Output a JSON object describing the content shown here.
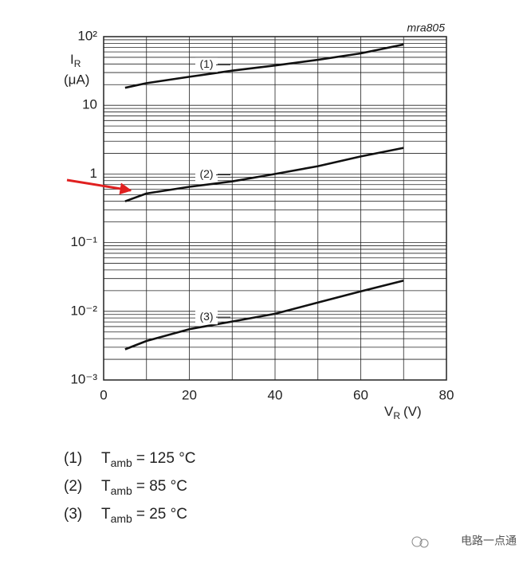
{
  "chart_data": {
    "type": "line",
    "annotation": "mra805",
    "ylabel": {
      "symbol": "I",
      "subscript": "R",
      "unit": "(μA)"
    },
    "xlabel": {
      "symbol": "V",
      "subscript": "R",
      "unit": "(V)"
    },
    "log_y": true,
    "grid": true,
    "xlim": [
      0,
      80
    ],
    "ylim": [
      0.001,
      100
    ],
    "xticks": [
      0,
      20,
      40,
      60,
      80
    ],
    "xminorticks": [
      10,
      30,
      50,
      70
    ],
    "yticks": [
      {
        "value": 100,
        "label": "10²"
      },
      10,
      1,
      {
        "value": 0.1,
        "label": "10⁻¹"
      },
      {
        "value": 0.01,
        "label": "10⁻²"
      },
      {
        "value": 0.001,
        "label": "10⁻³"
      }
    ],
    "yminorticks": [
      0.002,
      0.003,
      0.004,
      0.005,
      0.006,
      0.007,
      0.008,
      0.009,
      0.02,
      0.03,
      0.04,
      0.05,
      0.06,
      0.07,
      0.08,
      0.09,
      0.2,
      0.3,
      0.4,
      0.5,
      0.6,
      0.7,
      0.8,
      0.9,
      2,
      3,
      4,
      5,
      6,
      7,
      8,
      9,
      20,
      30,
      40,
      50,
      60,
      70,
      80,
      90
    ],
    "x": [
      5,
      10,
      20,
      30,
      40,
      50,
      60,
      70
    ],
    "series": [
      {
        "name": "(1)",
        "color": "#111111",
        "values": [
          18,
          21,
          26,
          32,
          38,
          46,
          57,
          77
        ]
      },
      {
        "name": "(2)",
        "color": "#111111",
        "values": [
          0.4,
          0.52,
          0.65,
          0.78,
          1.0,
          1.3,
          1.8,
          2.4
        ]
      },
      {
        "name": "(3)",
        "color": "#111111",
        "values": [
          0.0028,
          0.0037,
          0.0055,
          0.0071,
          0.0092,
          0.0134,
          0.0195,
          0.028
        ]
      }
    ],
    "legend": [
      {
        "key": "(1)",
        "symbol": "T",
        "subscript": "amb",
        "text": "= 125 °C"
      },
      {
        "key": "(2)",
        "symbol": "T",
        "subscript": "amb",
        "text": "= 85 °C"
      },
      {
        "key": "(3)",
        "symbol": "T",
        "subscript": "amb",
        "text": "= 25 °C"
      }
    ],
    "watermark": "电路一点通"
  }
}
